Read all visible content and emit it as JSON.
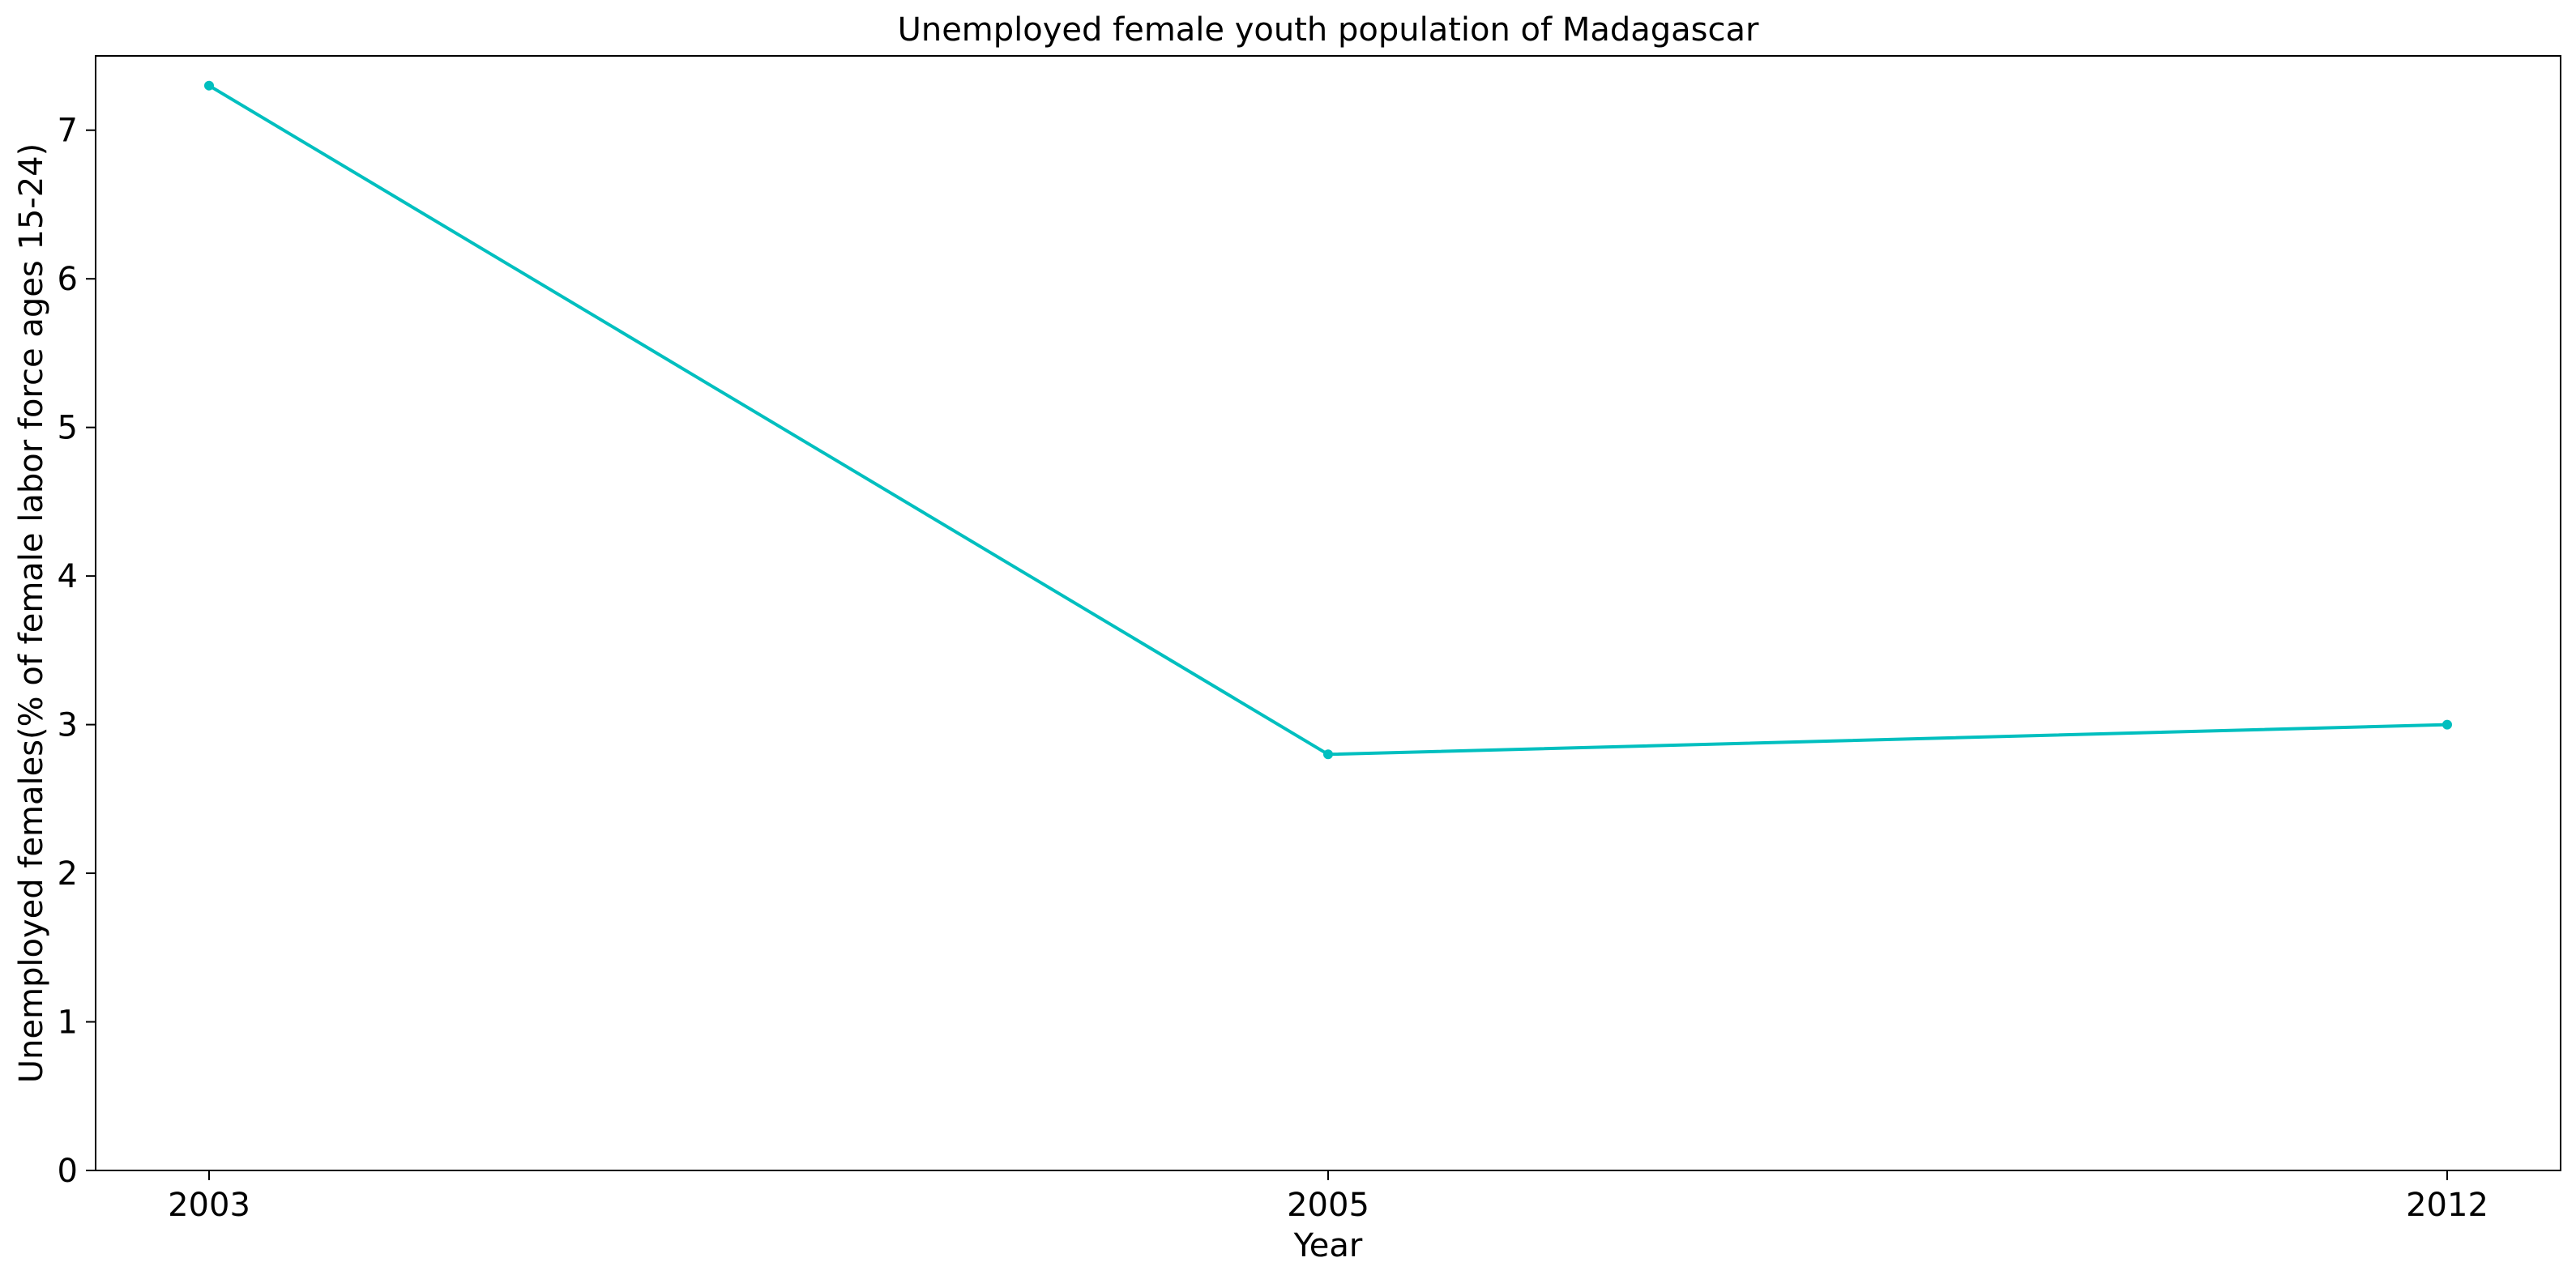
{
  "chart_data": {
    "type": "line",
    "title": "Unemployed female youth population of Madagascar",
    "xlabel": "Year",
    "ylabel": "Unemployed females(% of female labor force ages 15-24)",
    "categories": [
      "2003",
      "2005",
      "2012"
    ],
    "series": [
      {
        "values": [
          7.3,
          2.8,
          3.0
        ]
      }
    ],
    "ylim": [
      0,
      7.5
    ],
    "yticks": [
      0,
      1,
      2,
      3,
      4,
      5,
      6,
      7
    ],
    "grid": false,
    "line_color": "#00bfbf"
  }
}
